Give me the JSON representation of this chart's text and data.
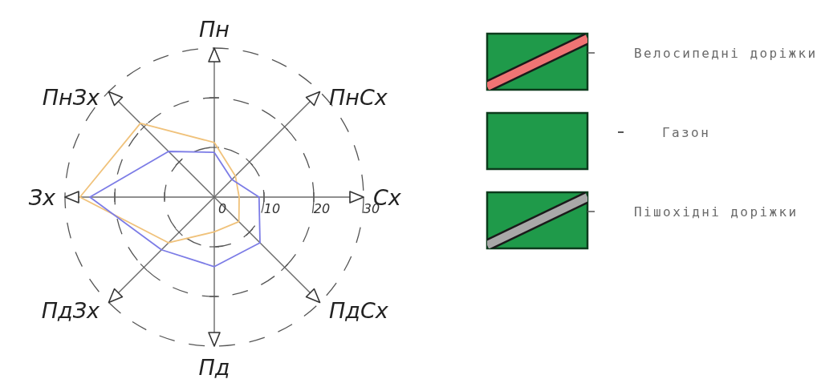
{
  "chart_data": [
    {
      "type": "radar",
      "categories": [
        "Пн",
        "ПнСх",
        "Сх",
        "ПдСх",
        "Пд",
        "ПдЗх",
        "Зх",
        "ПнЗх"
      ],
      "series": [
        {
          "color": "#f0c27b",
          "values": [
            11,
            6,
            5,
            7,
            7,
            13,
            27,
            21
          ]
        },
        {
          "color": "#7c7ce6",
          "values": [
            9,
            5,
            9,
            13,
            14,
            15,
            25,
            13
          ]
        }
      ],
      "ylim": [
        0,
        30
      ],
      "yticks": [
        0,
        10,
        20,
        30
      ],
      "grid": true
    },
    {
      "type": "other",
      "annotations": [
        "Велосипедні доріжки",
        "Газон",
        "Пішохідні доріжки"
      ]
    }
  ]
}
